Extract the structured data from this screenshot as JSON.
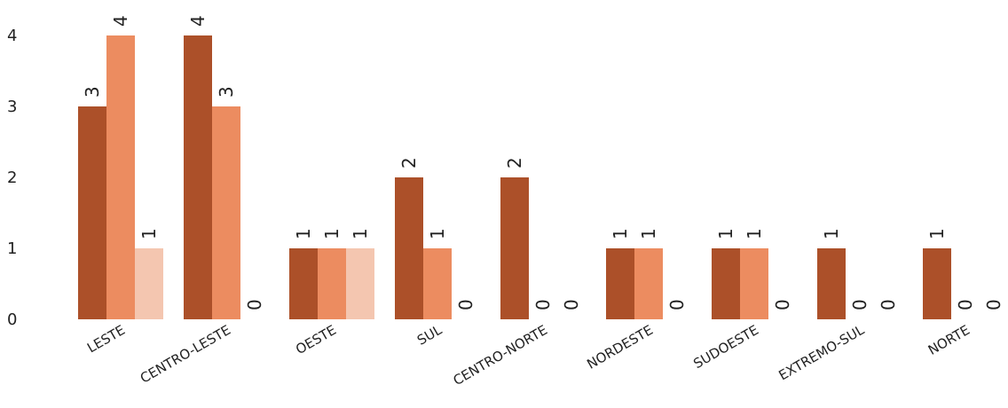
{
  "chart_data": {
    "type": "bar",
    "categories": [
      "LESTE",
      "CENTRO-LESTE",
      "OESTE",
      "SUL",
      "CENTRO-NORTE",
      "NORDESTE",
      "SUDOESTE",
      "EXTREMO-SUL",
      "NORTE"
    ],
    "series": [
      {
        "values": [
          3,
          4,
          1,
          2,
          2,
          1,
          1,
          1,
          1
        ],
        "color": "#ac5029"
      },
      {
        "values": [
          4,
          3,
          1,
          1,
          0,
          1,
          1,
          0,
          0
        ],
        "color": "#ec8c60"
      },
      {
        "values": [
          1,
          0,
          1,
          0,
          0,
          0,
          0,
          0,
          0
        ],
        "color": "#f4c6b0"
      }
    ],
    "y_ticks": [
      "0",
      "1",
      "2",
      "3",
      "4"
    ],
    "ylim": [
      0,
      4
    ],
    "grid": false,
    "legend": false,
    "data_labels": true
  }
}
